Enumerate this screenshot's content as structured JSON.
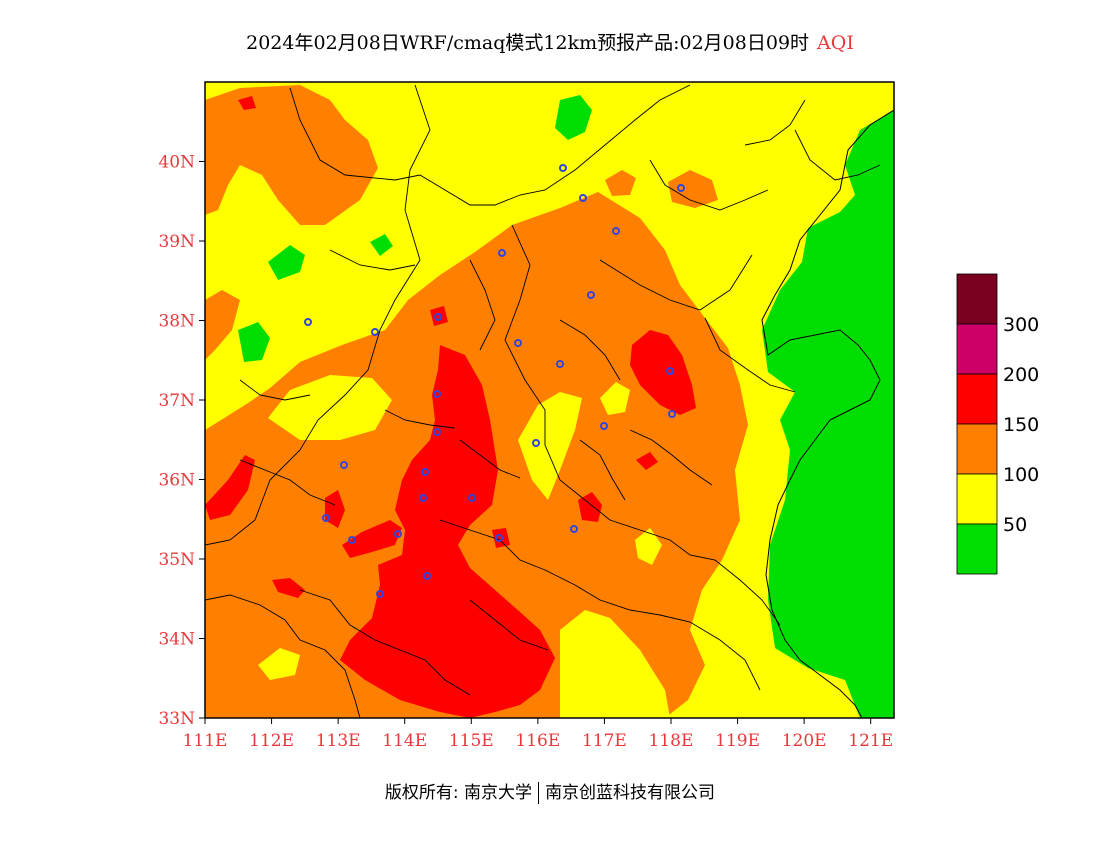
{
  "title": {
    "main": "2024年02月08日WRF/cmaq模式12km预报产品:02月08日09时",
    "variable": "AQI"
  },
  "map": {
    "lon_range": [
      111,
      121.35
    ],
    "lat_range": [
      33,
      41
    ],
    "lon_ticks": [
      111,
      112,
      113,
      114,
      115,
      116,
      117,
      118,
      119,
      120,
      121
    ],
    "lon_labels": [
      "111E",
      "112E",
      "113E",
      "114E",
      "115E",
      "116E",
      "117E",
      "118E",
      "119E",
      "120E",
      "121E"
    ],
    "lat_ticks": [
      33,
      34,
      35,
      36,
      37,
      38,
      39,
      40
    ],
    "lat_labels": [
      "33N",
      "34N",
      "35N",
      "36N",
      "37N",
      "38N",
      "39N",
      "40N"
    ],
    "colors": {
      "level_1": "#00dd00",
      "level_2": "#ffff00",
      "level_3": "#ff8000",
      "level_4": "#ff0000",
      "level_5": "#cc0066",
      "level_6": "#7a0020",
      "city_marker": "#3344dd",
      "label": "#e8383b"
    }
  },
  "legend": {
    "items": [
      {
        "color": "#7a0020",
        "label": ""
      },
      {
        "color": "#cc0066",
        "label": "300"
      },
      {
        "color": "#ff0000",
        "label": "200"
      },
      {
        "color": "#ff8000",
        "label": "150"
      },
      {
        "color": "#ffff00",
        "label": "100"
      },
      {
        "color": "#00dd00",
        "label": "50"
      }
    ]
  },
  "footer": {
    "left": "版权所有: 南京大学",
    "right": "南京创蓝科技有限公司"
  }
}
